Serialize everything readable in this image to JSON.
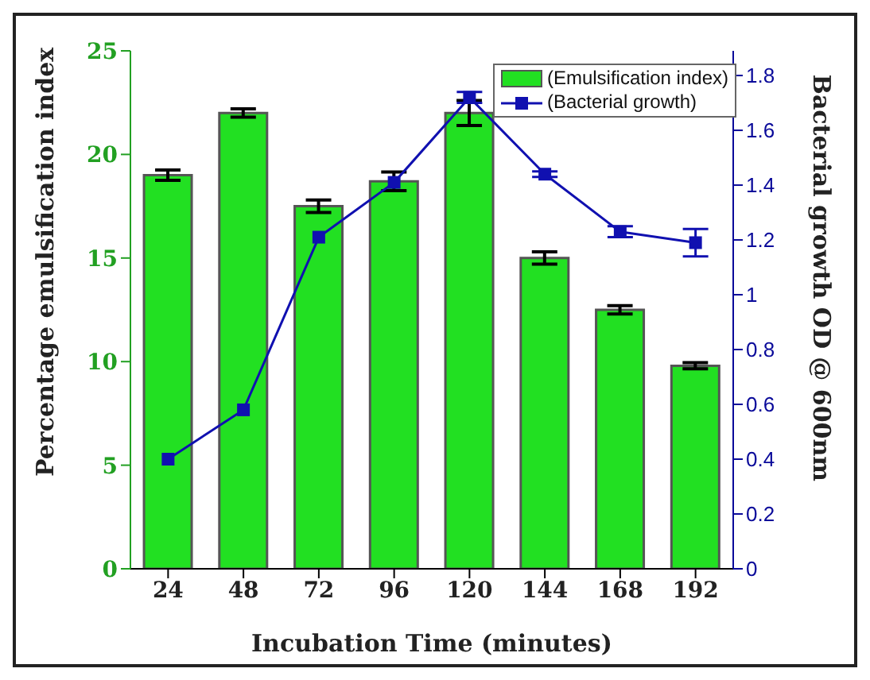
{
  "chart_data": {
    "type": "bar",
    "xlabel": "Incubation Time (minutes)",
    "ylabel": "Percentage emulsification index",
    "y2label": "Bacterial growth OD @ 600nm",
    "categories": [
      "24",
      "48",
      "72",
      "96",
      "120",
      "144",
      "168",
      "192"
    ],
    "series": [
      {
        "name": "(Emulsification index)",
        "color": "#22e022",
        "values": [
          19,
          22,
          17.5,
          18.7,
          22,
          15,
          12.5,
          9.8
        ],
        "errors": [
          0.25,
          0.2,
          0.3,
          0.45,
          0.6,
          0.3,
          0.2,
          0.15
        ]
      },
      {
        "name": "(Bacterial growth)",
        "type": "line",
        "axis": "y2",
        "color": "#1010b0",
        "marker": "square",
        "values": [
          0.4,
          0.58,
          1.21,
          1.41,
          1.72,
          1.44,
          1.23,
          1.19
        ],
        "errors": [
          null,
          null,
          null,
          null,
          0.02,
          0.01,
          0.02,
          0.05
        ]
      }
    ],
    "ylim": [
      0,
      25
    ],
    "yticks": [
      0,
      5,
      10,
      15,
      20,
      25
    ],
    "y2lim": [
      0,
      1.89
    ],
    "y2ticks": [
      0,
      0.2,
      0.4,
      0.6,
      0.8,
      1,
      1.2,
      1.4,
      1.6,
      1.8
    ],
    "grid": false,
    "legend": "top right"
  }
}
